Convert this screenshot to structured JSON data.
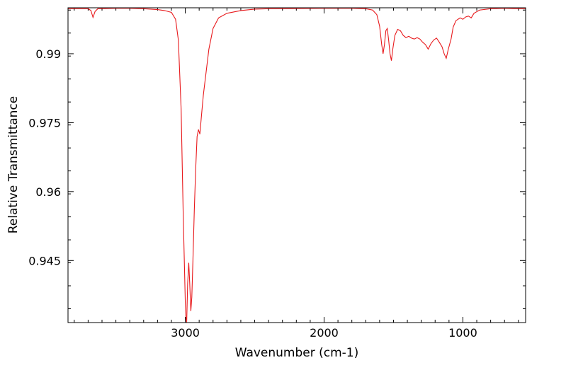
{
  "chart_data": {
    "type": "line",
    "title": "",
    "xlabel": "Wavenumber (cm-1)",
    "ylabel": "Relative Transmittance",
    "xlim": [
      3845,
      548
    ],
    "ylim": [
      0.9315,
      1.0
    ],
    "x_reversed": true,
    "x_ticks": [
      {
        "value": 3000,
        "label": "3000"
      },
      {
        "value": 2000,
        "label": "2000"
      },
      {
        "value": 1000,
        "label": "1000"
      }
    ],
    "y_ticks": [
      {
        "value": 0.99,
        "label": "0.99"
      },
      {
        "value": 0.975,
        "label": "0.975"
      },
      {
        "value": 0.96,
        "label": "0.96"
      },
      {
        "value": 0.945,
        "label": "0.945"
      }
    ],
    "grid": false,
    "legend": "none",
    "series": [
      {
        "color": "#e8191c",
        "points": [
          [
            3845,
            0.9998
          ],
          [
            3800,
            0.9998
          ],
          [
            3700,
            0.9998
          ],
          [
            3680,
            0.9994
          ],
          [
            3665,
            0.9979
          ],
          [
            3650,
            0.9992
          ],
          [
            3630,
            0.9998
          ],
          [
            3500,
            0.9999
          ],
          [
            3400,
            0.9999
          ],
          [
            3300,
            0.9998
          ],
          [
            3200,
            0.9996
          ],
          [
            3150,
            0.9994
          ],
          [
            3100,
            0.999
          ],
          [
            3070,
            0.9975
          ],
          [
            3050,
            0.993
          ],
          [
            3030,
            0.978
          ],
          [
            3015,
            0.955
          ],
          [
            3000,
            0.936
          ],
          [
            2995,
            0.9325
          ],
          [
            2990,
            0.9315
          ],
          [
            2983,
            0.94
          ],
          [
            2975,
            0.9445
          ],
          [
            2968,
            0.94
          ],
          [
            2960,
            0.934
          ],
          [
            2953,
            0.937
          ],
          [
            2945,
            0.945
          ],
          [
            2935,
            0.956
          ],
          [
            2925,
            0.965
          ],
          [
            2915,
            0.972
          ],
          [
            2905,
            0.9735
          ],
          [
            2895,
            0.9725
          ],
          [
            2885,
            0.976
          ],
          [
            2870,
            0.981
          ],
          [
            2850,
            0.986
          ],
          [
            2830,
            0.991
          ],
          [
            2800,
            0.9955
          ],
          [
            2760,
            0.9978
          ],
          [
            2700,
            0.9988
          ],
          [
            2600,
            0.9994
          ],
          [
            2500,
            0.9997
          ],
          [
            2400,
            0.9998
          ],
          [
            2000,
            0.9999
          ],
          [
            1800,
            0.9999
          ],
          [
            1700,
            0.9998
          ],
          [
            1650,
            0.9995
          ],
          [
            1620,
            0.9985
          ],
          [
            1600,
            0.996
          ],
          [
            1585,
            0.992
          ],
          [
            1575,
            0.99
          ],
          [
            1565,
            0.992
          ],
          [
            1555,
            0.995
          ],
          [
            1545,
            0.9955
          ],
          [
            1535,
            0.993
          ],
          [
            1525,
            0.99
          ],
          [
            1515,
            0.9885
          ],
          [
            1505,
            0.991
          ],
          [
            1490,
            0.994
          ],
          [
            1470,
            0.9953
          ],
          [
            1450,
            0.995
          ],
          [
            1430,
            0.994
          ],
          [
            1410,
            0.9935
          ],
          [
            1390,
            0.9938
          ],
          [
            1370,
            0.9934
          ],
          [
            1350,
            0.9932
          ],
          [
            1330,
            0.9935
          ],
          [
            1310,
            0.9932
          ],
          [
            1290,
            0.9925
          ],
          [
            1270,
            0.992
          ],
          [
            1250,
            0.991
          ],
          [
            1230,
            0.9922
          ],
          [
            1210,
            0.993
          ],
          [
            1190,
            0.9934
          ],
          [
            1170,
            0.9925
          ],
          [
            1150,
            0.9915
          ],
          [
            1135,
            0.99
          ],
          [
            1120,
            0.989
          ],
          [
            1105,
            0.991
          ],
          [
            1085,
            0.9932
          ],
          [
            1070,
            0.9958
          ],
          [
            1050,
            0.9972
          ],
          [
            1020,
            0.9978
          ],
          [
            1000,
            0.9975
          ],
          [
            980,
            0.998
          ],
          [
            960,
            0.9982
          ],
          [
            940,
            0.9978
          ],
          [
            920,
            0.9988
          ],
          [
            880,
            0.9995
          ],
          [
            800,
            0.9998
          ],
          [
            700,
            0.9999
          ],
          [
            600,
            0.9998
          ],
          [
            548,
            0.9998
          ]
        ]
      }
    ]
  }
}
